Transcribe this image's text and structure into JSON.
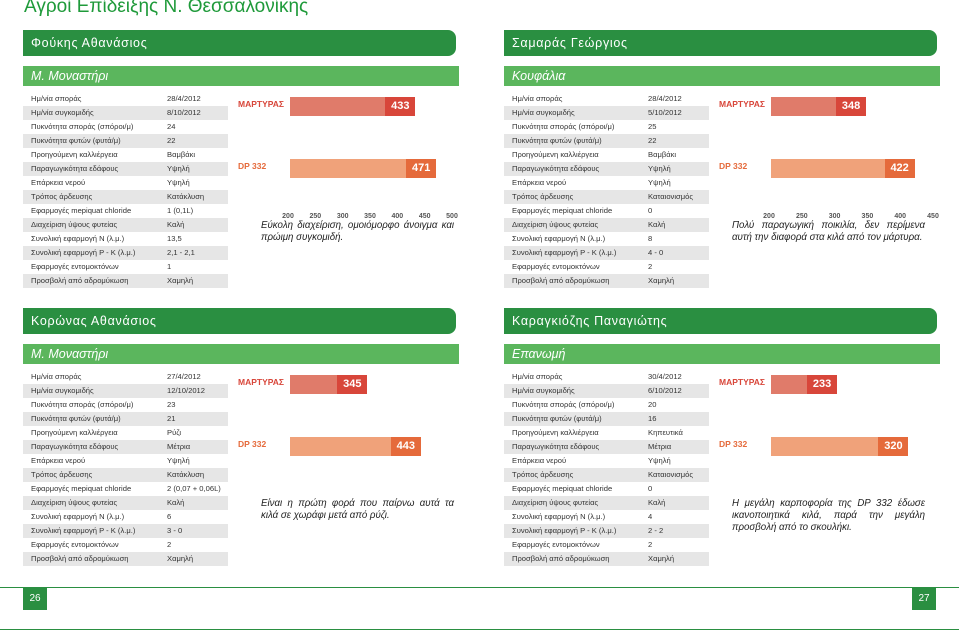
{
  "page_title": "Αγροί Επίδειξης Ν. Θεσσαλονίκης",
  "page_numbers": {
    "left": "26",
    "right": "27"
  },
  "colors": {
    "primary_green": "#2a8f41",
    "light_green": "#5bb65d",
    "martyras_red": "#d8463a",
    "dp_orange": "#e56a3b"
  },
  "labels": [
    "Ημ/νία σποράς",
    "Ημ/νία συγκομιδής",
    "Πυκνότητα σποράς (σπόροι/μ)",
    "Πυκνότητα φυτών (φυτά/μ)",
    "Προηγούμενη καλλιέργεια",
    "Παραγωγικότητα εδάφους",
    "Επάρκεια νερού",
    "Τρόπος άρδευσης",
    "Εφαρμογές mepiquat chloride",
    "Διαχείριση ύψους φυτείας",
    "Συνολική εφαρμογή N (λ.μ.)",
    "Συνολική εφαρμογή P - K (λ.μ.)",
    "Εφαρμογές εντομοκτόνων",
    "Προσβολή από αδρομύκωση"
  ],
  "cards": [
    {
      "farmer": "Φούκης Αθανάσιος",
      "location": "Μ. Μοναστήρι",
      "values": [
        "28/4/2012",
        "8/10/2012",
        "24",
        "22",
        "Βαμβάκι",
        "Υψηλή",
        "Υψηλή",
        "Κατάκλυση",
        "1 (0,1L)",
        "Καλή",
        "13,5",
        "2,1 - 2,1",
        "1",
        "Χαμηλή"
      ],
      "chart": {
        "type": "bar",
        "categories": [
          "ΜΑΡΤΥΡΑΣ",
          "DP 332"
        ],
        "values": [
          433,
          471
        ],
        "ticks": [
          "200",
          "250",
          "300",
          "350",
          "400",
          "450",
          "500"
        ],
        "xlim": [
          200,
          500
        ]
      },
      "comment": "Εύκολη διαχείριση, ομοιόμορφο άνοιγμα και πρώιμη συγκομιδή."
    },
    {
      "farmer": "Σαμαράς Γεώργιος",
      "location": "Κουφάλια",
      "values": [
        "28/4/2012",
        "5/10/2012",
        "25",
        "22",
        "Βαμβάκι",
        "Υψηλή",
        "Υψηλή",
        "Καταιονισμός",
        "0",
        "Καλή",
        "8",
        "4 - 0",
        "2",
        "Χαμηλή"
      ],
      "chart": {
        "type": "bar",
        "categories": [
          "ΜΑΡΤΥΡΑΣ",
          "DP 332"
        ],
        "values": [
          348,
          422
        ],
        "ticks": [
          "200",
          "250",
          "300",
          "350",
          "400",
          "450"
        ],
        "xlim": [
          200,
          450
        ]
      },
      "comment": "Πολύ παραγωγική ποικιλία, δεν περίμενα αυτή την διαφορά στα κιλά από τον μάρτυρα."
    },
    {
      "farmer": "Κορώνας Αθανάσιος",
      "location": "Μ. Μοναστήρι",
      "values": [
        "27/4/2012",
        "12/10/2012",
        "23",
        "21",
        "Ρύζι",
        "Μέτρια",
        "Υψηλή",
        "Κατάκλυση",
        "2 (0,07 + 0,06L)",
        "Καλή",
        "6",
        "3 - 0",
        "2",
        "Χαμηλή"
      ],
      "chart": {
        "type": "bar",
        "categories": [
          "ΜΑΡΤΥΡΑΣ",
          "DP 332"
        ],
        "values": [
          345,
          443
        ],
        "ticks": [],
        "xlim": [
          200,
          500
        ]
      },
      "comment": "Είναι η πρώτη φορά που παίρνω αυτά τα κιλά σε χωράφι μετά από ρύζι."
    },
    {
      "farmer": "Καραγκιόζης Παναγιώτης",
      "location": "Επανωμή",
      "values": [
        "30/4/2012",
        "6/10/2012",
        "20",
        "16",
        "Κηπευτικά",
        "Μέτρια",
        "Υψηλή",
        "Καταιονισμός",
        "0",
        "Καλή",
        "4",
        "2 - 2",
        "2",
        "Χαμηλή"
      ],
      "chart": {
        "type": "bar",
        "categories": [
          "ΜΑΡΤΥΡΑΣ",
          "DP 332"
        ],
        "values": [
          233,
          320
        ],
        "ticks": [],
        "xlim": [
          150,
          350
        ]
      },
      "comment": "Η μεγάλη καρποφορία της DP 332 έδωσε ικανοποιητικά κιλά, παρά την μεγάλη προσβολή από το σκουλήκι."
    }
  ]
}
